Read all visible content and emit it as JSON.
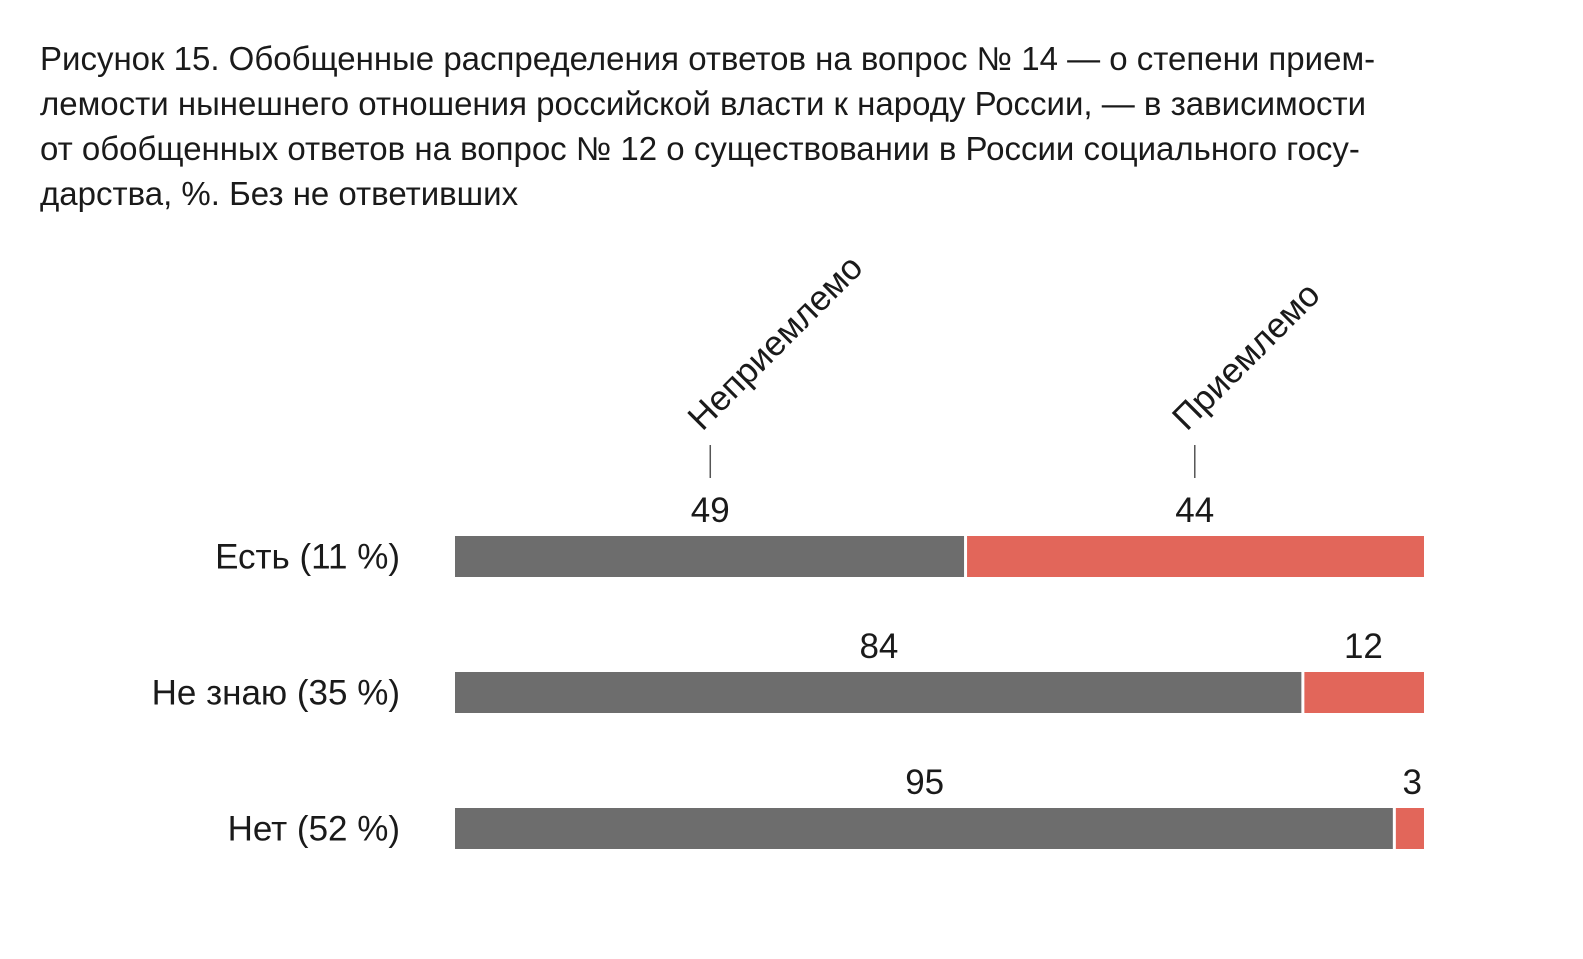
{
  "title": "Рисунок 15. Обобщенные распределения ответов на вопрос № 14 — о степени прием-\nлемости нынешнего отношения российской власти к народу России, — в зависимости\nот обобщенных ответов на вопрос № 12 о существовании в России социального госу-\nдарства, %. Без не ответивших",
  "colors": {
    "unacceptable": "#6d6d6d",
    "acceptable": "#e2665a",
    "text": "#1a1a1a",
    "tick": "#555555"
  },
  "chart_data": {
    "type": "bar",
    "orientation": "horizontal",
    "stacked": true,
    "title": "Рисунок 15. Обобщенные распределения ответов на вопрос № 14 — о степени приемлемости нынешнего отношения российской власти к народу России, — в зависимости от обобщенных ответов на вопрос № 12 о существовании в России социального государства, %. Без не ответивших",
    "categories": [
      "Есть (11 %)",
      "Не знаю (35 %)",
      "Нет (52 %)"
    ],
    "series": [
      {
        "name": "Неприемлемо",
        "values": [
          49,
          84,
          95
        ]
      },
      {
        "name": "Приемлемо",
        "values": [
          44,
          12,
          3
        ]
      }
    ],
    "legend": "rotated labels above first bar",
    "grid": false
  }
}
